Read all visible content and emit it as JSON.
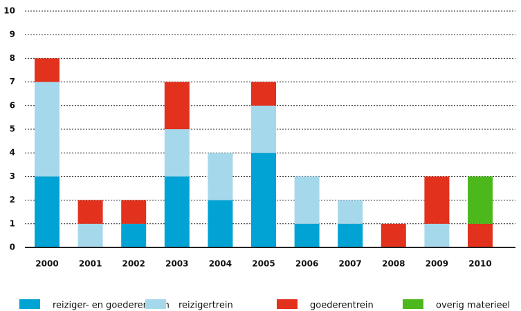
{
  "chart_data": {
    "type": "stacked-bar",
    "categories": [
      "2000",
      "2001",
      "2002",
      "2003",
      "2004",
      "2005",
      "2006",
      "2007",
      "2008",
      "2009",
      "2010"
    ],
    "series": [
      {
        "name": "reiziger- en goederentrein",
        "color": "#00a3d4",
        "values": [
          3,
          0,
          1,
          3,
          2,
          4,
          1,
          1,
          0,
          0,
          0
        ]
      },
      {
        "name": "reizigertrein",
        "color": "#a6d8ec",
        "values": [
          4,
          1,
          0,
          2,
          2,
          2,
          2,
          1,
          0,
          1,
          0
        ]
      },
      {
        "name": "goederentrein",
        "color": "#e2311d",
        "values": [
          1,
          1,
          1,
          2,
          0,
          1,
          0,
          0,
          1,
          2,
          1
        ]
      },
      {
        "name": "overig materieel",
        "color": "#4cb81c",
        "values": [
          0,
          0,
          0,
          0,
          0,
          0,
          0,
          0,
          0,
          0,
          2
        ]
      }
    ],
    "ylim": [
      0,
      10
    ],
    "yticks": [
      0,
      1,
      2,
      3,
      4,
      5,
      6,
      7,
      8,
      9,
      10
    ],
    "grid": true
  }
}
